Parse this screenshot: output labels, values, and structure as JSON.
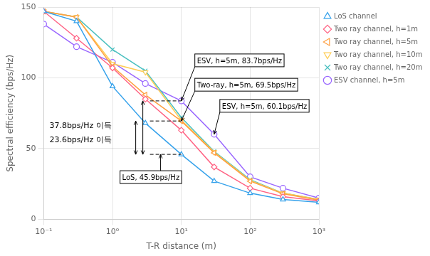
{
  "chart_data": {
    "type": "line",
    "x_label": "T-R distance (m)",
    "y_label": "Spectral efficiency (bps/Hz)",
    "log": "x",
    "grid": true,
    "legend": "right",
    "xlim": [
      0.1,
      1000
    ],
    "ylim": [
      0,
      150
    ],
    "xticks": [
      {
        "value": 0.1,
        "label": "10⁻¹"
      },
      {
        "value": 1,
        "label": "10⁰"
      },
      {
        "value": 10,
        "label": "10¹"
      },
      {
        "value": 100,
        "label": "10²"
      },
      {
        "value": 1000,
        "label": "10³"
      }
    ],
    "yticks": [
      0,
      50,
      100,
      150
    ],
    "x": [
      0.1,
      0.3,
      1,
      3,
      10,
      30,
      100,
      300,
      1000
    ],
    "series": [
      {
        "name": "LoS channel",
        "marker": "triangle-up",
        "values": [
          147,
          140,
          94,
          68,
          45.9,
          27,
          18.5,
          14,
          12
        ]
      },
      {
        "name": "Two ray channel, h=1m",
        "marker": "diamond",
        "values": [
          147,
          128,
          107,
          85,
          63,
          37,
          22,
          16,
          13
        ]
      },
      {
        "name": "Two ray channel, h=5m",
        "marker": "triangle-left",
        "values": [
          147,
          143,
          108,
          88,
          69.5,
          47,
          27,
          18,
          13.5
        ]
      },
      {
        "name": "Two ray channel, h=10m",
        "marker": "triangle-down",
        "values": [
          147,
          143,
          110,
          104,
          70,
          47.5,
          27.5,
          18.5,
          14
        ]
      },
      {
        "name": "Two ray channel, h=20m",
        "marker": "x",
        "values": [
          147,
          143,
          120,
          105,
          72,
          48,
          28,
          18.5,
          14
        ]
      },
      {
        "name": "ESV channel, h=5m",
        "marker": "circle",
        "values": [
          138,
          122,
          111,
          96,
          83.7,
          60.1,
          30,
          22,
          15
        ]
      }
    ],
    "reference_lines": [
      {
        "y": 45.9,
        "x": [
          3.5,
          10
        ]
      },
      {
        "y": 69.5,
        "x": [
          3.5,
          10
        ]
      },
      {
        "y": 83.7,
        "x": [
          3.5,
          10
        ]
      }
    ],
    "gains": [
      {
        "text": "37.8bps/Hz 이득",
        "from": 45.9,
        "to": 83.7
      },
      {
        "text": "23.6bps/Hz 이득",
        "from": 45.9,
        "to": 69.5
      }
    ],
    "annotations": [
      {
        "text": "LoS, 45.9bps/Hz",
        "x": 5.0,
        "y": 45.9
      },
      {
        "text": "ESV, h=5m, 83.7bps/Hz",
        "x": 10,
        "y": 83.7
      },
      {
        "text": "Two-ray, h=5m, 69.5bps/Hz",
        "x": 10,
        "y": 69.5
      },
      {
        "text": "ESV, h=5m, 60.1bps/Hz",
        "x": 30,
        "y": 60.1
      }
    ]
  }
}
